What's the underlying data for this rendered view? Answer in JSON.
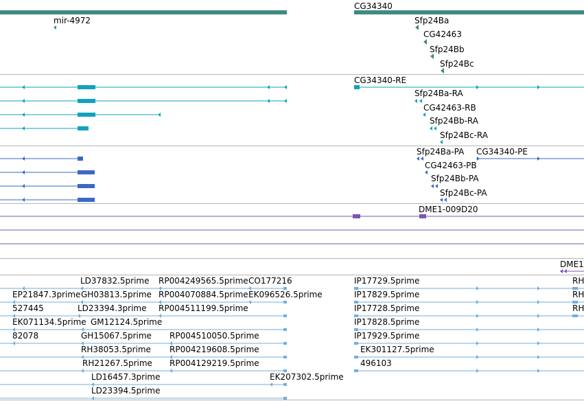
{
  "colors": {
    "gene": "#3e8a85",
    "transcript": "#12a2be",
    "protein": "#3a68c6",
    "clone": "#7b55b3",
    "est": "#74aedb",
    "separator": "#b4b4b4"
  },
  "tracks": {
    "genes": {
      "mir": "mir-4972",
      "cg": "CG34340",
      "sfp24ba": "Sfp24Ba",
      "cg42463": "CG42463",
      "sfp24bb": "Sfp24Bb",
      "sfp24bc": "Sfp24Bc"
    },
    "transcripts": {
      "cg_re": "CG34340-RE",
      "sfp24ba_ra": "Sfp24Ba-RA",
      "cg42463_rb": "CG42463-RB",
      "sfp24bb_ra": "Sfp24Bb-RA",
      "sfp24bc_ra": "Sfp24Bc-RA"
    },
    "proteins": {
      "sfp24ba_pa": "Sfp24Ba-PA",
      "cg_pe": "CG34340-PE",
      "cg42463_pb": "CG42463-PB",
      "sfp24bb_pa": "Sfp24Bb-PA",
      "sfp24bc_pa": "Sfp24Bc-PA"
    },
    "clones": {
      "dme1": "DME1-009D20",
      "dme1_cut": "DME1"
    },
    "ests": {
      "ld37832": "LD37832.5prime",
      "rp004249565": "RP004249565.5prime",
      "co177216": "CO177216",
      "ip17729": "IP17729.5prime",
      "rh_1": "RH",
      "ep21847": "EP21847.3prime",
      "gh03813": "GH03813.5prime",
      "rp004070884": "RP004070884.5prime",
      "ek096526": "EK096526.5prime",
      "ip17829": "IP17829.5prime",
      "rh_2": "RH",
      "n527445": "527445",
      "ld23394_3": "LD23394.3prime",
      "rp004511199": "RP004511199.5prime",
      "ip17728": "IP17728.5prime",
      "rh_3": "RH",
      "ek071134": "EK071134.5prime",
      "gm12124": "GM12124.5prime",
      "ip17828": "IP17828.5prime",
      "n82078": "82078",
      "gh15067": "GH15067.5prime",
      "rp004510050": "RP004510050.5prime",
      "ip17929": "IP17929.5prime",
      "rh38053": "RH38053.5prime",
      "rp004219608": "RP004219608.5prime",
      "ek301127": "EK301127.5prime",
      "rh21267": "RH21267.5prime",
      "rp004129219": "RP004129219.5prime",
      "n496103": "496103",
      "ld16457": "LD16457.3prime",
      "ek207302": "EK207302.5prime",
      "ld23394_5": "LD23394.5prime"
    }
  }
}
